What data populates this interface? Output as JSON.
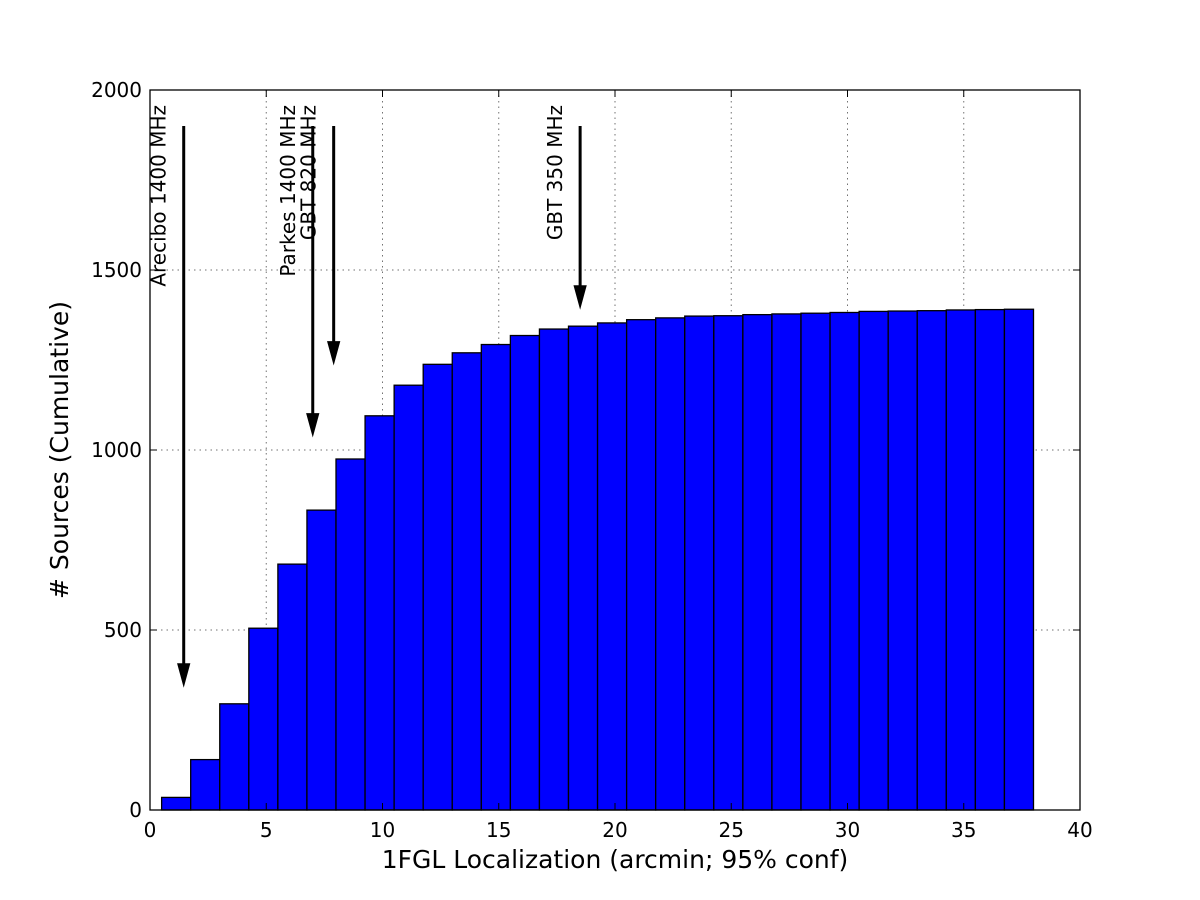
{
  "chart_data": {
    "type": "bar",
    "xlabel": "1FGL Localization (arcmin; 95% conf)",
    "ylabel": "# Sources (Cumulative)",
    "xlim": [
      0,
      40
    ],
    "ylim": [
      0,
      2000
    ],
    "xticks": [
      "0",
      "5",
      "10",
      "15",
      "20",
      "25",
      "30",
      "35",
      "40"
    ],
    "yticks": [
      "0",
      "500",
      "1000",
      "1500",
      "2000"
    ],
    "grid": true,
    "bar_color": "#0000ff",
    "bins": {
      "start": 0.5,
      "width": 1.25,
      "values": [
        35,
        140,
        295,
        505,
        683,
        833,
        975,
        1095,
        1180,
        1238,
        1270,
        1293,
        1318,
        1336,
        1344,
        1353,
        1362,
        1367,
        1372,
        1373,
        1376,
        1378,
        1380,
        1382,
        1385,
        1386,
        1387,
        1389,
        1390,
        1391
      ]
    },
    "annotations": [
      {
        "label": "Arecibo 1400 MHz",
        "x": 1.45,
        "y_from": 1900,
        "y_to": 345
      },
      {
        "label": "Parkes 1400 MHz",
        "x": 7.0,
        "y_from": 1900,
        "y_to": 1040
      },
      {
        "label": "GBT 820 MHz",
        "x": 7.9,
        "y_from": 1900,
        "y_to": 1240
      },
      {
        "label": "GBT 350 MHz",
        "x": 18.5,
        "y_from": 1900,
        "y_to": 1395
      }
    ]
  }
}
